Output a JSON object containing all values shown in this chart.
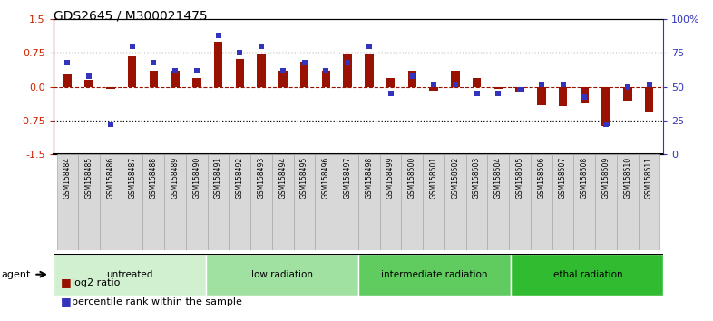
{
  "title": "GDS2645 / M300021475",
  "samples": [
    "GSM158484",
    "GSM158485",
    "GSM158486",
    "GSM158487",
    "GSM158488",
    "GSM158489",
    "GSM158490",
    "GSM158491",
    "GSM158492",
    "GSM158493",
    "GSM158494",
    "GSM158495",
    "GSM158496",
    "GSM158497",
    "GSM158498",
    "GSM158499",
    "GSM158500",
    "GSM158501",
    "GSM158502",
    "GSM158503",
    "GSM158504",
    "GSM158505",
    "GSM158506",
    "GSM158507",
    "GSM158508",
    "GSM158509",
    "GSM158510",
    "GSM158511"
  ],
  "log2_ratio": [
    0.28,
    0.15,
    -0.04,
    0.68,
    0.36,
    0.36,
    0.2,
    1.0,
    0.62,
    0.72,
    0.36,
    0.55,
    0.36,
    0.72,
    0.72,
    0.2,
    0.35,
    -0.08,
    0.35,
    0.2,
    -0.05,
    -0.12,
    -0.42,
    -0.44,
    -0.38,
    -0.88,
    -0.32,
    -0.55
  ],
  "percentile_rank": [
    68,
    58,
    22,
    80,
    68,
    62,
    62,
    88,
    75,
    80,
    62,
    68,
    62,
    68,
    80,
    45,
    58,
    52,
    52,
    45,
    45,
    48,
    52,
    52,
    42,
    22,
    50,
    52
  ],
  "groups": [
    {
      "label": "untreated",
      "start": 0,
      "end": 7,
      "color": "#d0f0d0"
    },
    {
      "label": "low radiation",
      "start": 7,
      "end": 14,
      "color": "#a0e0a0"
    },
    {
      "label": "intermediate radiation",
      "start": 14,
      "end": 21,
      "color": "#60cc60"
    },
    {
      "label": "lethal radiation",
      "start": 21,
      "end": 28,
      "color": "#30bb30"
    }
  ],
  "bar_color": "#991100",
  "dot_color": "#3333bb",
  "background_color": "#ffffff",
  "ylim_left": [
    -1.5,
    1.5
  ],
  "yticks_left": [
    -1.5,
    -0.75,
    0.0,
    0.75,
    1.5
  ],
  "yticks_right": [
    0,
    25,
    50,
    75,
    100
  ],
  "ylabel_left_color": "#cc2200",
  "ylabel_right_color": "#3333bb",
  "title_fontsize": 10,
  "tick_fontsize": 7,
  "agent_label": "agent",
  "legend_log2": "log2 ratio",
  "legend_pct": "percentile rank within the sample"
}
